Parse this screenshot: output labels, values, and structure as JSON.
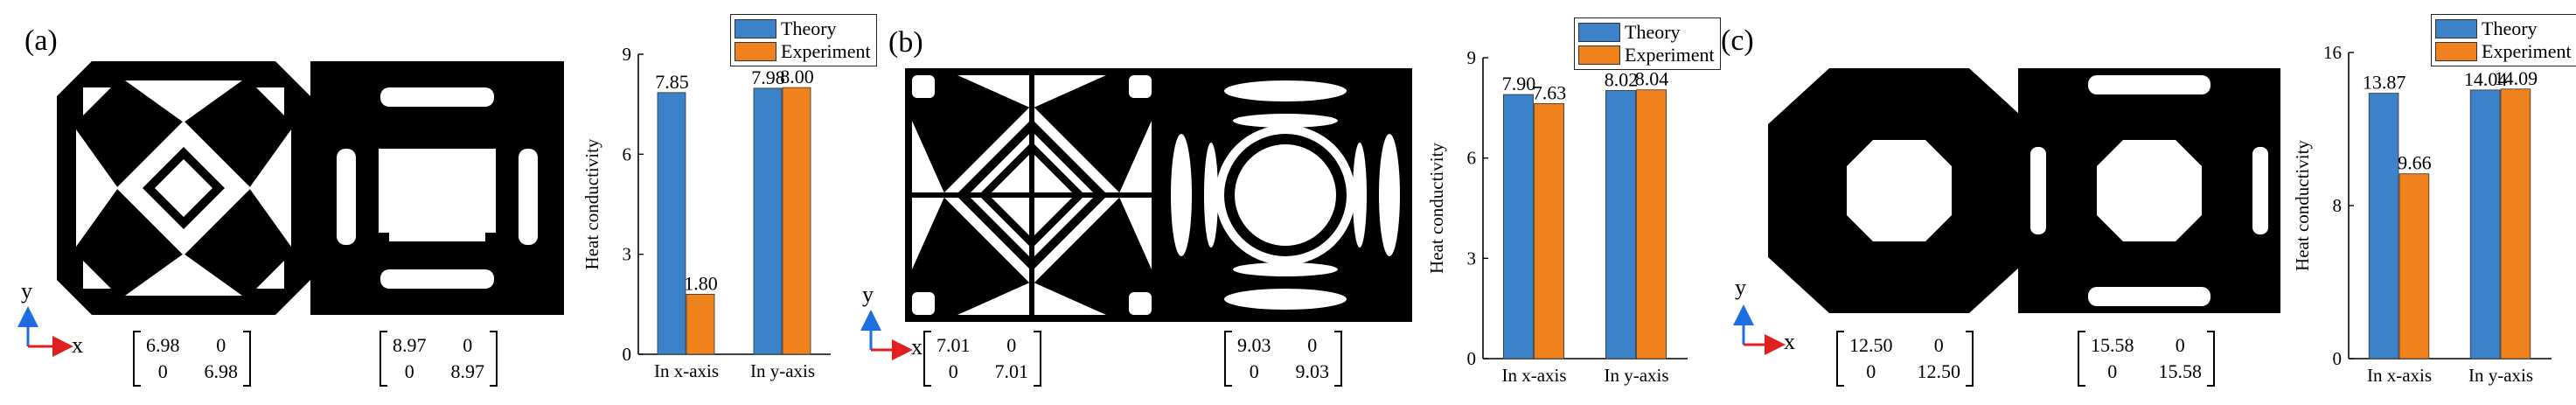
{
  "colors": {
    "theory": "#3c82c8",
    "experiment": "#f0821e"
  },
  "panels": [
    {
      "label": "(a)",
      "matrices": [
        {
          "a": "6.98",
          "b": "0",
          "c": "0",
          "d": "6.98"
        },
        {
          "a": "8.97",
          "b": "0",
          "c": "0",
          "d": "8.97"
        }
      ]
    },
    {
      "label": "(b)",
      "matrices": [
        {
          "a": "7.01",
          "b": "0",
          "c": "0",
          "d": "7.01"
        },
        {
          "a": "9.03",
          "b": "0",
          "c": "0",
          "d": "9.03"
        }
      ]
    },
    {
      "label": "(c)",
      "matrices": [
        {
          "a": "12.50",
          "b": "0",
          "c": "0",
          "d": "12.50"
        },
        {
          "a": "15.58",
          "b": "0",
          "c": "0",
          "d": "15.58"
        }
      ]
    }
  ],
  "axes_icon": {
    "x": "x",
    "y": "y"
  },
  "chart_data": [
    {
      "type": "bar",
      "categories": [
        "In x-axis",
        "In y-axis"
      ],
      "series": [
        {
          "name": "Theory",
          "values": [
            7.85,
            7.98
          ]
        },
        {
          "name": "Experiment",
          "values": [
            1.8,
            8.0
          ]
        }
      ],
      "data_labels": [
        [
          "7.85",
          "7.98"
        ],
        [
          "1.80",
          "8.00"
        ]
      ],
      "ylabel": "Heat conductivity",
      "ylim": [
        0,
        9
      ],
      "yticks": [
        0,
        3,
        6,
        9
      ],
      "legend": "top-right",
      "grid": false
    },
    {
      "type": "bar",
      "categories": [
        "In x-axis",
        "In y-axis"
      ],
      "series": [
        {
          "name": "Theory",
          "values": [
            7.9,
            8.02
          ]
        },
        {
          "name": "Experiment",
          "values": [
            7.63,
            8.04
          ]
        }
      ],
      "data_labels": [
        [
          "7.90",
          "8.02"
        ],
        [
          "7.63",
          "8.04"
        ]
      ],
      "ylabel": "Heat conductivity",
      "ylim": [
        0,
        9
      ],
      "yticks": [
        0,
        3,
        6,
        9
      ],
      "legend": "top-right",
      "grid": false
    },
    {
      "type": "bar",
      "categories": [
        "In x-axis",
        "In y-axis"
      ],
      "series": [
        {
          "name": "Theory",
          "values": [
            13.87,
            14.04
          ]
        },
        {
          "name": "Experiment",
          "values": [
            9.66,
            14.09
          ]
        }
      ],
      "data_labels": [
        [
          "13.87",
          "14.04"
        ],
        [
          "9.66",
          "14.09"
        ]
      ],
      "ylabel": "Heat conductivity",
      "ylim": [
        0,
        16
      ],
      "yticks": [
        0,
        8,
        16
      ],
      "legend": "top-right",
      "grid": false
    }
  ]
}
